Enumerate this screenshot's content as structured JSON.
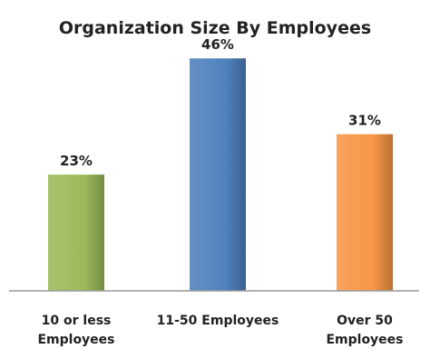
{
  "chart_data": {
    "type": "bar",
    "title": "Organization Size By Employees",
    "categories": [
      [
        "10 or less",
        "Employees"
      ],
      [
        "11-50 Employees"
      ],
      [
        "Over 50",
        "Employees"
      ]
    ],
    "values": [
      23,
      46,
      31
    ],
    "data_labels": [
      "23%",
      "46%",
      "31%"
    ],
    "colors": [
      "#9BBB59",
      "#4F81BD",
      "#F79646"
    ],
    "ylim": [
      0,
      50
    ],
    "grid": false,
    "legend": "none",
    "xlabel": "",
    "ylabel": ""
  }
}
